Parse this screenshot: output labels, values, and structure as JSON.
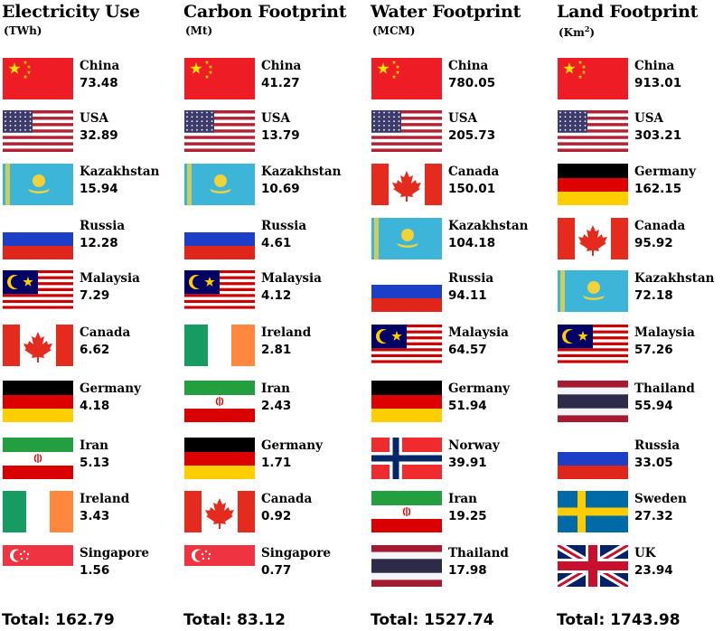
{
  "columns": [
    {
      "title": "Electricity Use",
      "unit": "(TWh)",
      "unit_sup": "",
      "unit_tail": "",
      "total": "Total: 162.79",
      "entries": [
        {
          "country": "China",
          "value": "73.48",
          "flag": "china"
        },
        {
          "country": "USA",
          "value": "32.89",
          "flag": "usa"
        },
        {
          "country": "Kazakhstan",
          "value": "15.94",
          "flag": "kazakhstan"
        },
        {
          "country": "Russia",
          "value": "12.28",
          "flag": "russia"
        },
        {
          "country": "Malaysia",
          "value": "7.29",
          "flag": "malaysia"
        },
        {
          "country": "Canada",
          "value": "6.62",
          "flag": "canada"
        },
        {
          "country": "Germany",
          "value": "4.18",
          "flag": "germany"
        },
        {
          "country": "Iran",
          "value": "5.13",
          "flag": "iran"
        },
        {
          "country": "Ireland",
          "value": "3.43",
          "flag": "ireland"
        },
        {
          "country": "Singapore",
          "value": "1.56",
          "flag": "singapore"
        }
      ]
    },
    {
      "title": "Carbon Footprint",
      "unit": "(Mt)",
      "unit_sup": "",
      "unit_tail": "",
      "total": "Total: 83.12",
      "entries": [
        {
          "country": "China",
          "value": "41.27",
          "flag": "china"
        },
        {
          "country": "USA",
          "value": "13.79",
          "flag": "usa"
        },
        {
          "country": "Kazakhstan",
          "value": "10.69",
          "flag": "kazakhstan"
        },
        {
          "country": "Russia",
          "value": "4.61",
          "flag": "russia"
        },
        {
          "country": "Malaysia",
          "value": "4.12",
          "flag": "malaysia"
        },
        {
          "country": "Ireland",
          "value": "2.81",
          "flag": "ireland"
        },
        {
          "country": "Iran",
          "value": "2.43",
          "flag": "iran"
        },
        {
          "country": "Germany",
          "value": "1.71",
          "flag": "germany"
        },
        {
          "country": "Canada",
          "value": "0.92",
          "flag": "canada"
        },
        {
          "country": "Singapore",
          "value": "0.77",
          "flag": "singapore"
        }
      ]
    },
    {
      "title": "Water Footprint",
      "unit": "(MCM)",
      "unit_sup": "",
      "unit_tail": "",
      "total": "Total: 1527.74",
      "entries": [
        {
          "country": "China",
          "value": "780.05",
          "flag": "china"
        },
        {
          "country": "USA",
          "value": "205.73",
          "flag": "usa"
        },
        {
          "country": "Canada",
          "value": "150.01",
          "flag": "canada"
        },
        {
          "country": "Kazakhstan",
          "value": "104.18",
          "flag": "kazakhstan"
        },
        {
          "country": "Russia",
          "value": "94.11",
          "flag": "russia"
        },
        {
          "country": "Malaysia",
          "value": "64.57",
          "flag": "malaysia"
        },
        {
          "country": "Germany",
          "value": "51.94",
          "flag": "germany"
        },
        {
          "country": "Norway",
          "value": "39.91",
          "flag": "norway"
        },
        {
          "country": "Iran",
          "value": "19.25",
          "flag": "iran"
        },
        {
          "country": "Thailand",
          "value": "17.98",
          "flag": "thailand"
        }
      ]
    },
    {
      "title": "Land Footprint",
      "unit": "(Km",
      "unit_sup": "2",
      "unit_tail": ")",
      "total": "Total: 1743.98",
      "entries": [
        {
          "country": "China",
          "value": "913.01",
          "flag": "china"
        },
        {
          "country": "USA",
          "value": "303.21",
          "flag": "usa"
        },
        {
          "country": "Germany",
          "value": "162.15",
          "flag": "germany"
        },
        {
          "country": "Canada",
          "value": "95.92",
          "flag": "canada"
        },
        {
          "country": "Kazakhstan",
          "value": "72.18",
          "flag": "kazakhstan"
        },
        {
          "country": "Malaysia",
          "value": "57.26",
          "flag": "malaysia"
        },
        {
          "country": "Thailand",
          "value": "55.94",
          "flag": "thailand"
        },
        {
          "country": "Russia",
          "value": "33.05",
          "flag": "russia"
        },
        {
          "country": "Sweden",
          "value": "27.32",
          "flag": "sweden"
        },
        {
          "country": "UK",
          "value": "23.94",
          "flag": "uk"
        }
      ]
    }
  ]
}
